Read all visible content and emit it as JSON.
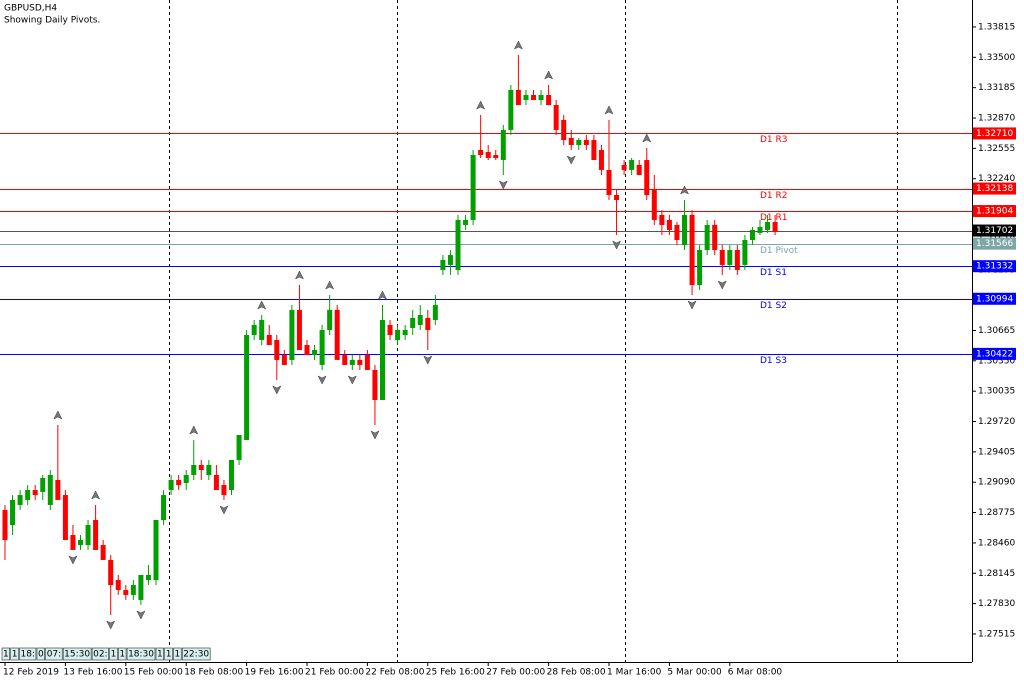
{
  "chart_data": {
    "type": "candlestick",
    "title": "GBPUSD,H4",
    "subtitle": "Showing Daily Pivots.",
    "categories": [
      "12 Feb 2019",
      null,
      null,
      null,
      null,
      null,
      null,
      null,
      "13 Feb 16:00",
      null,
      null,
      null,
      null,
      null,
      null,
      null,
      "15 Feb 00:00",
      null,
      null,
      null,
      null,
      null,
      null,
      null,
      "18 Feb 08:00",
      null,
      null,
      null,
      null,
      null,
      null,
      null,
      "19 Feb 16:00",
      null,
      null,
      null,
      null,
      null,
      null,
      null,
      "21 Feb 00:00",
      null,
      null,
      null,
      null,
      null,
      null,
      null,
      "22 Feb 08:00",
      null,
      null,
      null,
      null,
      null,
      null,
      null,
      "25 Feb 16:00",
      null,
      null,
      null,
      null,
      null,
      null,
      null,
      "27 Feb 00:00",
      null,
      null,
      null,
      null,
      null,
      null,
      null,
      "28 Feb 08:00",
      null,
      null,
      null,
      null,
      null,
      null,
      null,
      "1 Mar 16:00",
      null,
      null,
      null,
      null,
      null,
      null,
      null,
      "5 Mar 00:00",
      null,
      null,
      null,
      null,
      null,
      null,
      null,
      "6 Mar 08:00",
      null,
      null,
      null,
      null,
      null,
      null
    ],
    "open": [
      1.28802,
      1.28646,
      1.28854,
      1.28906,
      1.29009,
      1.28989,
      1.28854,
      1.29113,
      1.28957,
      1.28542,
      1.28438,
      1.28438,
      1.28698,
      1.28438,
      1.28283,
      1.28075,
      1.27971,
      1.2792,
      1.27868,
      1.28075,
      1.28075,
      1.28698,
      1.29009,
      1.29113,
      1.29082,
      1.29165,
      1.29269,
      1.29165,
      1.29165,
      1.29061,
      1.29009,
      1.29321,
      1.29528,
      1.30618,
      1.30566,
      1.30618,
      1.30566,
      1.3041,
      1.30359,
      1.30878,
      1.30514,
      1.3041,
      1.30307,
      1.3067,
      1.30878,
      1.3041,
      1.30307,
      1.30359,
      1.3041,
      1.30255,
      1.29943,
      1.30722,
      1.30566,
      1.30618,
      1.30691,
      1.30722,
      1.30795,
      1.30774,
      1.31293,
      1.31345,
      1.31293,
      1.3176,
      1.31812,
      1.32538,
      1.32517,
      1.32486,
      1.32434,
      1.32746,
      1.33161,
      1.33057,
      1.33109,
      1.33057,
      1.33109,
      1.33005,
      1.3285,
      1.32663,
      1.3259,
      1.32642,
      1.32642,
      1.32538,
      1.32331,
      1.32071,
      1.32383,
      1.32331,
      1.32383,
      1.32434,
      1.32123,
      1.31864,
      1.31812,
      1.3176,
      1.31552,
      1.31864,
      1.31137,
      1.315,
      1.3176,
      1.315,
      1.31345,
      1.315,
      1.31345,
      1.31604,
      1.31677,
      1.31708,
      1.31791
    ],
    "high": [
      1.28854,
      1.28957,
      1.29009,
      1.29061,
      1.29061,
      1.29165,
      1.29217,
      1.29684,
      1.29009,
      1.28646,
      1.28542,
      1.28698,
      1.28854,
      1.2849,
      1.28335,
      1.28127,
      1.28023,
      1.28075,
      1.28127,
      1.28231,
      1.28698,
      1.29009,
      1.29165,
      1.29165,
      1.29217,
      1.29528,
      1.29321,
      1.29321,
      1.29269,
      1.29113,
      1.29321,
      1.2958,
      1.3067,
      1.30774,
      1.30826,
      1.30722,
      1.30618,
      1.30462,
      1.30929,
      1.31137,
      1.30566,
      1.30514,
      1.30722,
      1.31033,
      1.30929,
      1.30462,
      1.3041,
      1.3041,
      1.30462,
      1.30307,
      1.30929,
      1.30774,
      1.30722,
      1.30722,
      1.30878,
      1.30929,
      1.30878,
      1.31033,
      1.31448,
      1.315,
      1.31864,
      1.31864,
      1.32538,
      1.32901,
      1.3259,
      1.32538,
      1.32798,
      1.33213,
      1.33524,
      1.33161,
      1.33161,
      1.33161,
      1.33213,
      1.33057,
      1.32901,
      1.32746,
      1.32663,
      1.32694,
      1.32694,
      1.3259,
      1.3285,
      1.32123,
      1.32434,
      1.32455,
      1.32434,
      1.32559,
      1.32279,
      1.31915,
      1.31864,
      1.31791,
      1.32019,
      1.31915,
      1.31552,
      1.31812,
      1.31812,
      1.31552,
      1.31552,
      1.31552,
      1.31656,
      1.31739,
      1.31812,
      1.31864,
      1.31864
    ],
    "low": [
      1.28283,
      1.28542,
      1.28802,
      1.28854,
      1.28906,
      1.28906,
      1.28802,
      1.28906,
      1.2849,
      1.28387,
      1.28387,
      1.28387,
      1.28387,
      1.28283,
      1.27712,
      1.2792,
      1.27868,
      1.27868,
      1.27816,
      1.28023,
      1.28023,
      1.28646,
      1.28957,
      1.29009,
      1.29009,
      1.29113,
      1.29113,
      1.29113,
      1.29009,
      1.28906,
      1.28957,
      1.29269,
      1.29528,
      1.30566,
      1.30514,
      1.30514,
      1.30151,
      1.30307,
      1.30307,
      1.30462,
      1.3041,
      1.30359,
      1.30255,
      1.30618,
      1.30359,
      1.30307,
      1.30255,
      1.30255,
      1.30255,
      1.29684,
      1.29943,
      1.30566,
      1.30514,
      1.30566,
      1.30618,
      1.3067,
      1.30462,
      1.30722,
      1.31241,
      1.31241,
      1.31241,
      1.31708,
      1.3176,
      1.32455,
      1.32434,
      1.32434,
      1.32279,
      1.32694,
      1.33005,
      1.33005,
      1.33057,
      1.33005,
      1.33005,
      1.32694,
      1.3259,
      1.32538,
      1.32538,
      1.32538,
      1.32434,
      1.32279,
      1.32019,
      1.31656,
      1.32279,
      1.32279,
      1.32279,
      1.32019,
      1.3176,
      1.31656,
      1.31656,
      1.31552,
      1.315,
      1.31033,
      1.31085,
      1.31448,
      1.31448,
      1.31241,
      1.31293,
      1.31241,
      1.31293,
      1.31552,
      1.31656,
      1.31677,
      1.31656
    ],
    "close": [
      1.2849,
      1.28906,
      1.28957,
      1.29009,
      1.28957,
      1.29134,
      1.29165,
      1.28906,
      1.2849,
      1.28387,
      1.2849,
      1.28646,
      1.28387,
      1.28283,
      1.28023,
      1.27971,
      1.2792,
      1.28023,
      1.28127,
      1.28127,
      1.28698,
      1.28957,
      1.29113,
      1.29061,
      1.29165,
      1.29269,
      1.29217,
      1.29269,
      1.29009,
      1.28957,
      1.29321,
      1.2958,
      1.30618,
      1.30722,
      1.30774,
      1.30514,
      1.30359,
      1.30307,
      1.30878,
      1.30462,
      1.3041,
      1.30462,
      1.3067,
      1.30878,
      1.30359,
      1.30307,
      1.30359,
      1.30307,
      1.30255,
      1.29943,
      1.30774,
      1.30618,
      1.3067,
      1.3067,
      1.30795,
      1.30826,
      1.3067,
      1.30929,
      1.31397,
      1.31448,
      1.31812,
      1.31812,
      1.32486,
      1.32486,
      1.32455,
      1.32455,
      1.32746,
      1.33161,
      1.33005,
      1.33109,
      1.33057,
      1.33109,
      1.33005,
      1.32746,
      1.32642,
      1.3259,
      1.32642,
      1.3259,
      1.32434,
      1.32331,
      1.32071,
      1.32019,
      1.32331,
      1.32434,
      1.32279,
      1.32071,
      1.31812,
      1.3176,
      1.31708,
      1.31604,
      1.31864,
      1.31137,
      1.315,
      1.3176,
      1.315,
      1.31345,
      1.315,
      1.31293,
      1.31604,
      1.31708,
      1.31739,
      1.31791,
      1.31687
    ],
    "up_color": "#00a000",
    "down_color": "#ff0000",
    "ylim": [
      1.27224,
      1.34095
    ],
    "yticks": [
      1.33815,
      {
        "value": 1.335,
        "label": "1.33500"
      },
      1.33185,
      {
        "value": 1.3287,
        "label": "1.32870"
      },
      1.32555,
      {
        "value": 1.3224,
        "label": "1.32240"
      },
      1.31925,
      {
        "value": 1.3161,
        "label": "1.31610"
      },
      1.31295,
      {
        "value": 1.3098,
        "label": "1.30980"
      },
      1.30665,
      {
        "value": 1.3035,
        "label": "1.30350"
      },
      1.30035,
      {
        "value": 1.2972,
        "label": "1.29720"
      },
      1.29405,
      {
        "value": 1.2909,
        "label": "1.29090"
      },
      1.28775,
      {
        "value": 1.2846,
        "label": "1.28460"
      },
      1.28145,
      {
        "value": 1.2783,
        "label": "1.27830"
      },
      1.27515
    ],
    "grid": false,
    "levels": {
      "names": [
        "D1 R3",
        "D1 R2",
        "D1 R1",
        "D1 Pivot",
        "D1 S1",
        "D1 S2",
        "D1 S3"
      ],
      "values": [
        1.3271,
        1.32138,
        1.31904,
        1.31566,
        1.31332,
        1.30994,
        1.30422
      ],
      "value_labels": [
        "1.32710",
        "1.32138",
        "1.31904",
        "1.31566",
        "1.31332",
        "1.30994",
        "1.30422"
      ],
      "colors": [
        "#ff0000",
        "#ff0000",
        "#ff0000",
        "#7fa6a6",
        "#0000ff",
        "#0000ff",
        "#0000ff"
      ]
    },
    "last_price": 1.31702,
    "last_price_color": "#000000",
    "time_flags": [
      "1",
      "1",
      "18:",
      "0",
      "07:",
      "15:30",
      "02:",
      "1",
      "1",
      "18:30",
      "1",
      "1",
      "1",
      "22:30"
    ]
  }
}
